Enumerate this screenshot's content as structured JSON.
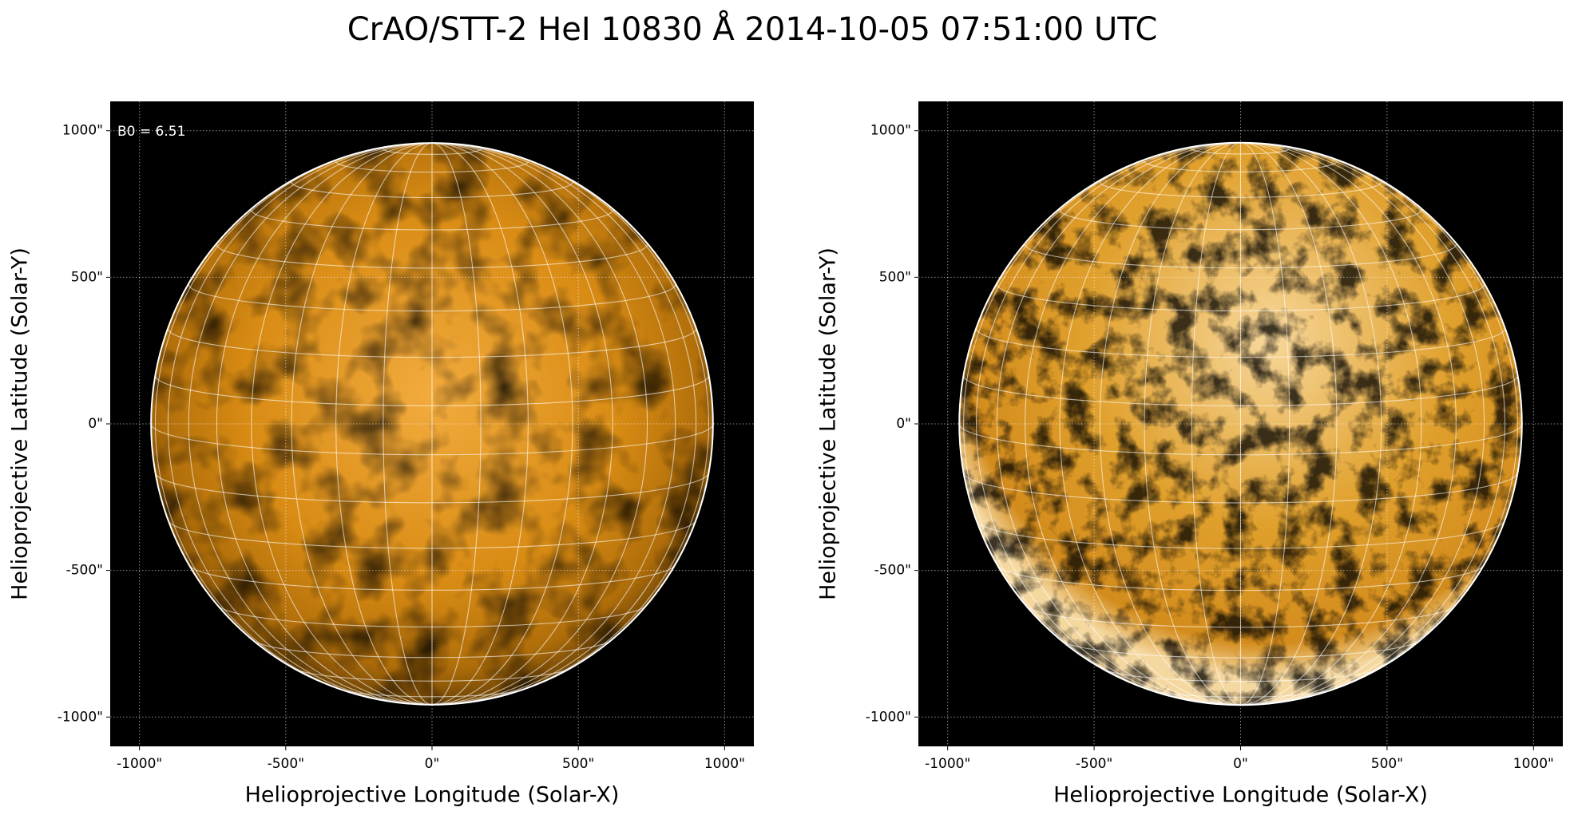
{
  "title": "CrAO/STT-2 HeI 10830 Å 2014-10-05 07:51:00 UTC",
  "chart_data": [
    {
      "type": "image",
      "xlabel": "Helioprojective Longitude (Solar-X)",
      "ylabel": "Helioprojective Latitude (Solar-Y)",
      "xlim": [
        -1100,
        1100
      ],
      "ylim": [
        -1100,
        1100
      ],
      "xticks": [
        {
          "value": -1000,
          "label": "-1000\""
        },
        {
          "value": -500,
          "label": "-500\""
        },
        {
          "value": 0,
          "label": "0\""
        },
        {
          "value": 500,
          "label": "500\""
        },
        {
          "value": 1000,
          "label": "1000\""
        }
      ],
      "yticks": [
        {
          "value": -1000,
          "label": "-1000\""
        },
        {
          "value": -500,
          "label": "-500\""
        },
        {
          "value": 0,
          "label": "0\""
        },
        {
          "value": 500,
          "label": "500\""
        },
        {
          "value": 1000,
          "label": "1000\""
        }
      ],
      "grid": true,
      "annotation": "B0 = 6.51"
    },
    {
      "type": "image",
      "xlabel": "Helioprojective Longitude (Solar-X)",
      "ylabel": "Helioprojective Latitude (Solar-Y)",
      "xlim": [
        -1100,
        1100
      ],
      "ylim": [
        -1100,
        1100
      ],
      "xticks": [
        {
          "value": -1000,
          "label": "-1000\""
        },
        {
          "value": -500,
          "label": "-500\""
        },
        {
          "value": 0,
          "label": "0\""
        },
        {
          "value": 500,
          "label": "500\""
        },
        {
          "value": 1000,
          "label": "1000\""
        }
      ],
      "yticks": [
        {
          "value": -1000,
          "label": "-1000\""
        },
        {
          "value": -500,
          "label": "-500\""
        },
        {
          "value": 0,
          "label": "0\""
        },
        {
          "value": 500,
          "label": "500\""
        },
        {
          "value": 1000,
          "label": "1000\""
        }
      ],
      "grid": true
    }
  ]
}
